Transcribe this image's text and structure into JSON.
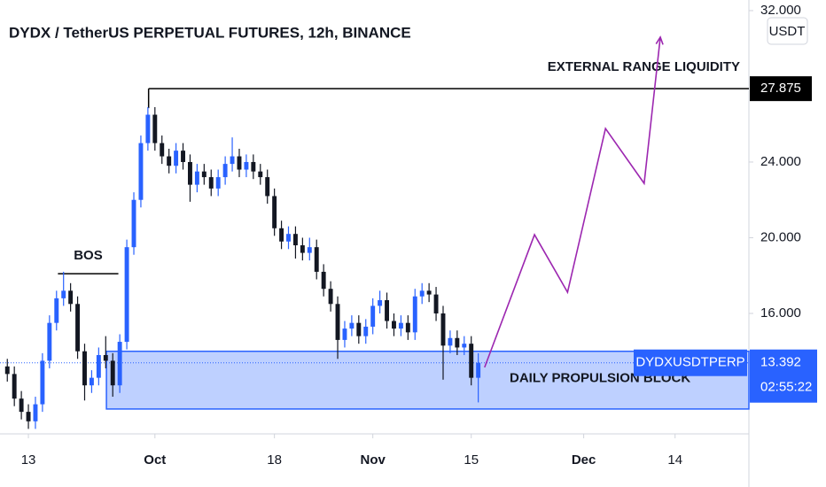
{
  "chart_data": {
    "type": "candlestick",
    "title": "DYDX / TetherUS PERPETUAL FUTURES, 12h, BINANCE",
    "currency": "USDT",
    "symbol": "DYDXUSDTPERP",
    "countdown": "02:55:22",
    "current_price": 13.392,
    "up_color": "#2962ff",
    "down_color": "#131722",
    "xlim": [
      -4.04,
      102.5
    ],
    "ylim": [
      9.73,
      32.56
    ],
    "xticks": [
      {
        "value": 0,
        "label": "13"
      },
      {
        "value": 18,
        "label": "Oct"
      },
      {
        "value": 35,
        "label": "18"
      },
      {
        "value": 49,
        "label": "Nov"
      },
      {
        "value": 63,
        "label": "15"
      },
      {
        "value": 79,
        "label": "Dec"
      },
      {
        "value": 92,
        "label": "14"
      }
    ],
    "yticks": [
      {
        "value": 16,
        "label": "16.000"
      },
      {
        "value": 20,
        "label": "20.000"
      },
      {
        "value": 24,
        "label": "24.000"
      },
      {
        "value": 32,
        "label": "32.000"
      }
    ],
    "candles": [
      [
        -3,
        13.2,
        13.6,
        12.4,
        12.8
      ],
      [
        -2,
        12.8,
        13.2,
        11.1,
        11.5
      ],
      [
        -1,
        11.5,
        11.9,
        10.4,
        10.8
      ],
      [
        0,
        10.8,
        11.2,
        9.9,
        10.3
      ],
      [
        1,
        10.3,
        11.6,
        9.9,
        11.2
      ],
      [
        2,
        11.2,
        13.9,
        10.8,
        13.5
      ],
      [
        3,
        13.5,
        15.9,
        13.1,
        15.5
      ],
      [
        4,
        15.5,
        17.2,
        15.1,
        16.8
      ],
      [
        5,
        16.8,
        18.2,
        16.4,
        17.2
      ],
      [
        6,
        17.2,
        17.6,
        16.1,
        16.5
      ],
      [
        7,
        16.5,
        16.9,
        13.6,
        14
      ],
      [
        8,
        14,
        14.4,
        11.4,
        12.2
      ],
      [
        9,
        12.2,
        13,
        11.8,
        12.6
      ],
      [
        10,
        12.6,
        14.2,
        12.2,
        13.8
      ],
      [
        11,
        13.8,
        14.8,
        13.1,
        13.5
      ],
      [
        12,
        13.5,
        13.9,
        11.6,
        12.2
      ],
      [
        13,
        12.2,
        14.9,
        11.8,
        14.5
      ],
      [
        14,
        14.5,
        19.9,
        14.1,
        19.5
      ],
      [
        15,
        19.5,
        22.4,
        19.1,
        22
      ],
      [
        16,
        22,
        25.4,
        21.6,
        25
      ],
      [
        17,
        25,
        26.9,
        24.6,
        26.5
      ],
      [
        18,
        26.5,
        26.9,
        24.6,
        25
      ],
      [
        19,
        25,
        25.4,
        23.9,
        24.3
      ],
      [
        20,
        24.3,
        24.7,
        23.4,
        23.8
      ],
      [
        21,
        23.8,
        25,
        23.4,
        24.6
      ],
      [
        22,
        24.6,
        25,
        23.6,
        24
      ],
      [
        23,
        24,
        24.4,
        21.9,
        22.8
      ],
      [
        24,
        22.8,
        23.9,
        22.4,
        23.5
      ],
      [
        25,
        23.5,
        23.9,
        22.8,
        23.2
      ],
      [
        26,
        23.2,
        23.6,
        22.2,
        22.6
      ],
      [
        27,
        22.6,
        23.6,
        22.2,
        23.2
      ],
      [
        28,
        23.2,
        24.3,
        22.8,
        23.9
      ],
      [
        29,
        23.9,
        25.3,
        23.5,
        24.3
      ],
      [
        30,
        24.3,
        24.7,
        23.2,
        23.6
      ],
      [
        31,
        23.6,
        24.4,
        23.2,
        24
      ],
      [
        32,
        24,
        24.4,
        23.1,
        23.5
      ],
      [
        33,
        23.5,
        23.9,
        22.8,
        23.2
      ],
      [
        34,
        23.2,
        23.6,
        21.8,
        22.2
      ],
      [
        35,
        22.2,
        22.6,
        20.1,
        20.5
      ],
      [
        36,
        20.5,
        20.9,
        19.4,
        19.8
      ],
      [
        37,
        19.8,
        20.6,
        19.4,
        20.2
      ],
      [
        38,
        20.2,
        20.6,
        18.9,
        19.6
      ],
      [
        39,
        19.6,
        20,
        18.8,
        19.2
      ],
      [
        40,
        19.2,
        20,
        18.8,
        19.5
      ],
      [
        41,
        19.5,
        19.9,
        17.8,
        18.2
      ],
      [
        42,
        18.2,
        18.6,
        16.9,
        17.3
      ],
      [
        43,
        17.3,
        17.7,
        16.1,
        16.5
      ],
      [
        44,
        16.5,
        16.9,
        13.6,
        14.6
      ],
      [
        45,
        14.6,
        15.6,
        14.2,
        15.2
      ],
      [
        46,
        15.2,
        15.9,
        14.8,
        15.5
      ],
      [
        47,
        15.5,
        15.9,
        14.4,
        14.8
      ],
      [
        48,
        14.8,
        15.7,
        14.4,
        15.3
      ],
      [
        49,
        15.3,
        16.8,
        14.9,
        16.4
      ],
      [
        50,
        16.4,
        17.2,
        16,
        16.7
      ],
      [
        51,
        16.7,
        17.1,
        15.2,
        15.6
      ],
      [
        52,
        15.6,
        16,
        14.8,
        15.2
      ],
      [
        53,
        15.2,
        15.9,
        14.8,
        15.5
      ],
      [
        54,
        15.5,
        15.9,
        14.6,
        15
      ],
      [
        55,
        15,
        17.3,
        14.6,
        16.9
      ],
      [
        56,
        16.9,
        17.6,
        16.5,
        17.2
      ],
      [
        57,
        17.2,
        17.6,
        16.6,
        17
      ],
      [
        58,
        17,
        17.4,
        15.6,
        16
      ],
      [
        59,
        16,
        16.4,
        12.5,
        14.3
      ],
      [
        60,
        14.3,
        15.1,
        13.9,
        14.7
      ],
      [
        61,
        14.7,
        15.1,
        13.8,
        14.2
      ],
      [
        62,
        14.2,
        14.8,
        13.8,
        14.4
      ],
      [
        63,
        14.4,
        14.8,
        12.2,
        12.6
      ],
      [
        64,
        12.6,
        13.9,
        11.3,
        13.392
      ]
    ],
    "bos": {
      "label": "BOS",
      "price": 18.1,
      "x": [
        4.2,
        12.8
      ]
    },
    "liquidity": {
      "label": "EXTERNAL RANGE LIQUIDITY",
      "price": 27.875,
      "x_start": 17.1
    },
    "zone": {
      "label": "DAILY PROPULSION BLOCK",
      "x_start": 11.1,
      "price_range": [
        10.95,
        14.0
      ],
      "color": "#2962ff"
    },
    "projection": {
      "color": "#9c27b0",
      "x": [
        64.9,
        72.0,
        76.7,
        82.1,
        87.6,
        89.9
      ],
      "y": [
        13.15,
        20.16,
        17.12,
        25.77,
        22.87,
        30.6
      ]
    }
  }
}
